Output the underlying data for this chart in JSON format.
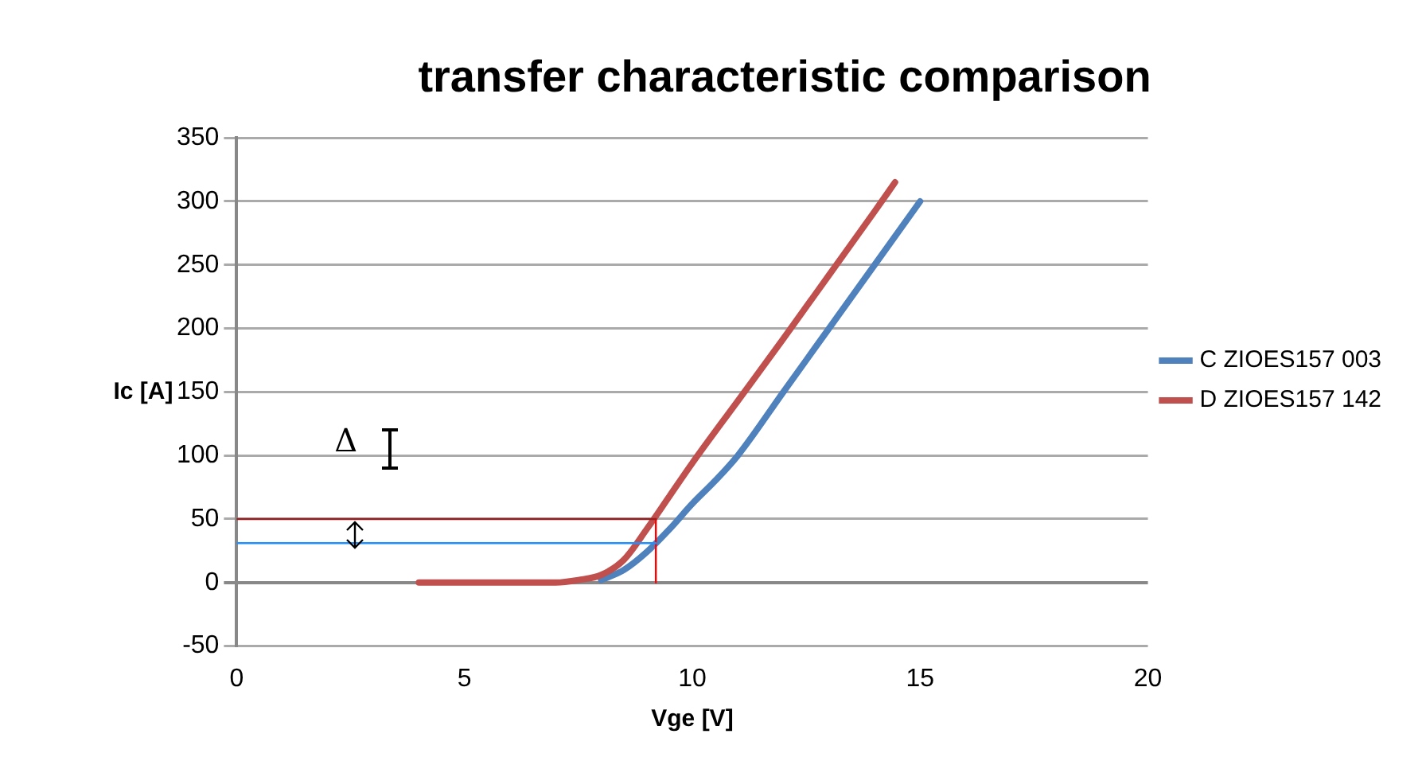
{
  "chart_data": {
    "type": "line",
    "title": "transfer characteristic comparison",
    "xlabel": "Vge [V]",
    "ylabel": "Ic [A]",
    "xlim": [
      0,
      20
    ],
    "xticks": [
      0,
      5,
      10,
      15,
      20
    ],
    "ylim": [
      -50,
      350
    ],
    "yticks": [
      -50,
      0,
      50,
      100,
      150,
      200,
      250,
      300,
      350
    ],
    "grid": "y",
    "legend": "right",
    "marker": "none",
    "line_style": "solid",
    "annotations": [
      "Δ"
    ],
    "series": [
      {
        "name": "C ZIOES157 003",
        "color": "#4f81bd",
        "x": [
          8,
          8.5,
          9,
          9.5,
          10,
          10.5,
          11,
          12,
          13,
          14,
          15
        ],
        "values": [
          2,
          10,
          24,
          42,
          62,
          80,
          100,
          150,
          200,
          250,
          300
        ]
      },
      {
        "name": "D ZIOES157 142",
        "color": "#c0504d",
        "x": [
          4,
          5,
          6,
          7,
          7.5,
          8,
          8.5,
          9,
          9.5,
          10,
          11,
          12,
          13,
          14,
          14.45
        ],
        "values": [
          0,
          0,
          0,
          0,
          2,
          6,
          18,
          42,
          68,
          94,
          143,
          192,
          242,
          292,
          315
        ]
      },
      {
        "color": "#9b1c1c",
        "x": [
          0,
          9.2
        ],
        "values": [
          50,
          50
        ]
      },
      {
        "color": "#1e90ff",
        "x": [
          0,
          9.2
        ],
        "values": [
          31,
          31
        ]
      },
      {
        "color": "#ff0000",
        "x": [
          9.2,
          9.2
        ],
        "values": [
          0,
          50
        ]
      }
    ]
  }
}
